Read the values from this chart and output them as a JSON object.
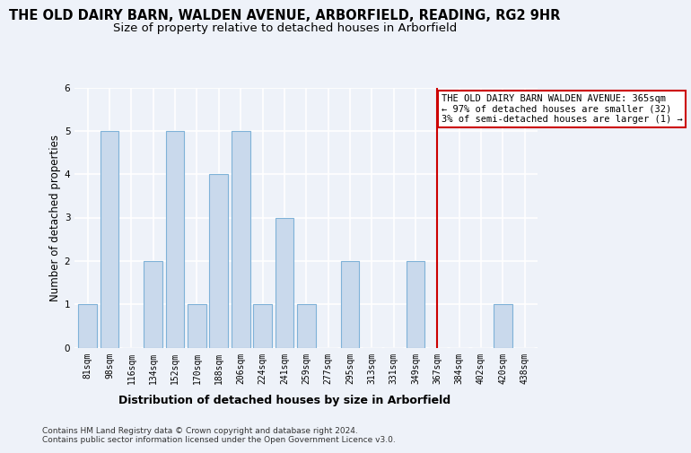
{
  "title": "THE OLD DAIRY BARN, WALDEN AVENUE, ARBORFIELD, READING, RG2 9HR",
  "subtitle": "Size of property relative to detached houses in Arborfield",
  "xlabel": "Distribution of detached houses by size in Arborfield",
  "ylabel": "Number of detached properties",
  "categories": [
    "81sqm",
    "98sqm",
    "116sqm",
    "134sqm",
    "152sqm",
    "170sqm",
    "188sqm",
    "206sqm",
    "224sqm",
    "241sqm",
    "259sqm",
    "277sqm",
    "295sqm",
    "313sqm",
    "331sqm",
    "349sqm",
    "367sqm",
    "384sqm",
    "402sqm",
    "420sqm",
    "438sqm"
  ],
  "values": [
    1,
    5,
    0,
    2,
    5,
    1,
    4,
    5,
    1,
    3,
    1,
    0,
    2,
    0,
    0,
    2,
    0,
    0,
    0,
    1,
    0
  ],
  "bar_color": "#c9d9ec",
  "bar_edgecolor": "#7fb2d8",
  "vline_x": 16,
  "vline_color": "#cc0000",
  "annotation_text": "THE OLD DAIRY BARN WALDEN AVENUE: 365sqm\n← 97% of detached houses are smaller (32)\n3% of semi-detached houses are larger (1) →",
  "annotation_box_color": "#ffffff",
  "annotation_box_edgecolor": "#cc0000",
  "ylim": [
    0,
    6
  ],
  "yticks": [
    0,
    1,
    2,
    3,
    4,
    5,
    6
  ],
  "footer_text": "Contains HM Land Registry data © Crown copyright and database right 2024.\nContains public sector information licensed under the Open Government Licence v3.0.",
  "background_color": "#eef2f9",
  "grid_color": "#ffffff",
  "title_fontsize": 10.5,
  "subtitle_fontsize": 9.5,
  "ylabel_fontsize": 8.5,
  "xlabel_fontsize": 9,
  "tick_fontsize": 7,
  "footer_fontsize": 6.5,
  "ann_fontsize": 7.5
}
